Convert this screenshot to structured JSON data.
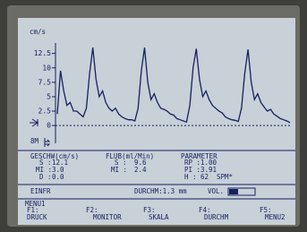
{
  "waveform": {
    "ylabel": "cm/s",
    "ylim": [
      -2,
      14
    ],
    "yticks": [
      12.5,
      10,
      7.5,
      5,
      2.5,
      0
    ],
    "values": [
      2,
      9.5,
      6,
      3.5,
      4,
      2.5,
      2.5,
      2,
      1.5,
      3,
      9,
      13.5,
      8,
      5,
      6,
      4,
      3,
      2.5,
      3,
      2,
      1.5,
      1.2,
      1,
      1,
      0.8,
      3,
      9.5,
      13.5,
      7.5,
      4.5,
      5.5,
      4,
      3,
      2.8,
      2.5,
      2,
      1.8,
      1.2,
      1,
      0.8,
      0.6,
      3.5,
      10,
      13.3,
      8,
      5,
      6,
      4.5,
      3.5,
      3,
      2.5,
      2.2,
      1.5,
      1.2,
      1,
      0.9,
      0.7,
      3,
      9,
      13.2,
      7.5,
      4.5,
      5.5,
      4,
      3.2,
      2.5,
      2.8,
      2,
      1.6,
      1.2,
      1,
      0.8,
      0.5
    ]
  },
  "marker": "8M",
  "panel": {
    "geschw": {
      "title": "GESCHW(cm/s)",
      "rows": [
        [
          "S :",
          "12.1"
        ],
        [
          "MI :",
          "3.0"
        ],
        [
          "D :",
          "0.0"
        ]
      ]
    },
    "flub": {
      "title": "FLUB(ml/Min)",
      "rows": [
        [
          "S :",
          "9.6"
        ],
        [
          "MI :",
          "2.4"
        ]
      ]
    },
    "parameter": {
      "title": "PARAMETER",
      "rows": [
        [
          "RP :",
          "1.00"
        ],
        [
          "PI :",
          "3.91"
        ],
        [
          "H :",
          "62",
          "SPM*"
        ]
      ]
    },
    "status": {
      "mode": "EINFR",
      "durchm": "DURCHM:1.3 mm",
      "vol": "VOL."
    }
  },
  "menu": {
    "title": "MENU1",
    "keys": [
      [
        "F1:",
        "DRUCK"
      ],
      [
        "F2:",
        "MONITOR"
      ],
      [
        "F3:",
        "SKALA"
      ],
      [
        "F4:",
        "DURCHM"
      ],
      [
        "F5:",
        "MENU2"
      ]
    ]
  }
}
